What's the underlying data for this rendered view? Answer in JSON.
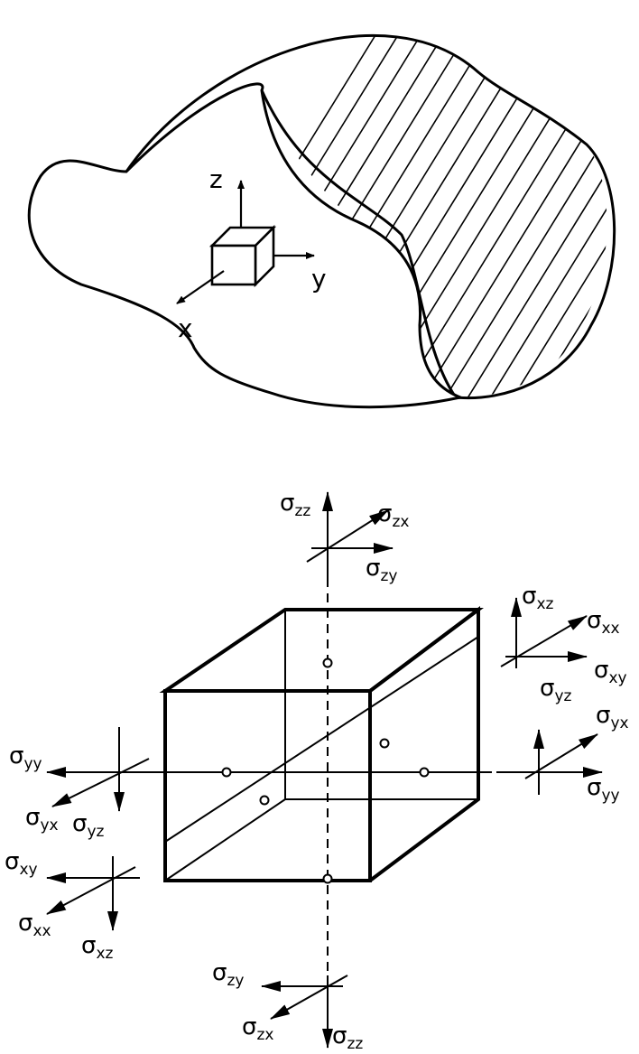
{
  "body_axes": {
    "x": "x",
    "y": "y",
    "z": "z"
  },
  "stress_symbol": "σ",
  "stress_labels": {
    "top_zz": "zz",
    "top_zx": "zx",
    "top_zy": "zy",
    "front_xz": "xz",
    "front_xx": "xx",
    "front_xy": "xy",
    "right_yz": "yz",
    "right_yx": "yx",
    "right_yy": "yy",
    "left_yy": "yy",
    "left_yx": "yx",
    "left_yz": "yz",
    "back_xy": "xy",
    "back_xx": "xx",
    "back_xz": "xz",
    "bottom_zy": "zy",
    "bottom_zx": "zx",
    "bottom_zz": "zz"
  }
}
